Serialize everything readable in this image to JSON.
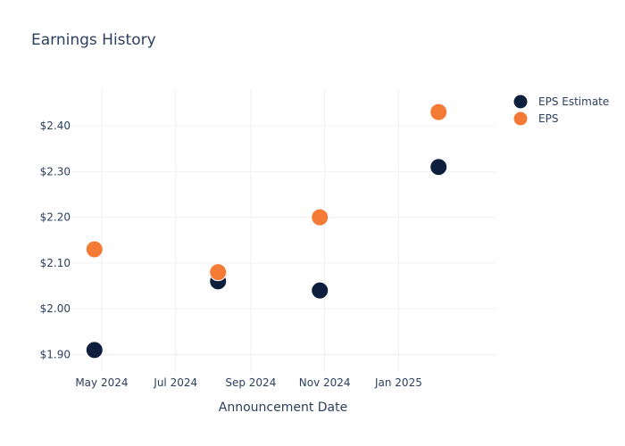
{
  "chart_data": {
    "type": "scatter",
    "title": "Earnings History",
    "xlabel": "Announcement Date",
    "ylabel": "",
    "x_ticks": [
      {
        "date": "2024-05-01",
        "label": "May 2024"
      },
      {
        "date": "2024-07-01",
        "label": "Jul 2024"
      },
      {
        "date": "2024-09-01",
        "label": "Sep 2024"
      },
      {
        "date": "2024-11-01",
        "label": "Nov 2024"
      },
      {
        "date": "2025-01-01",
        "label": "Jan 2025"
      }
    ],
    "xlim": [
      "2024-04-06",
      "2025-03-22"
    ],
    "y_ticks": [
      {
        "value": 1.9,
        "label": "$1.90"
      },
      {
        "value": 2.0,
        "label": "$2.00"
      },
      {
        "value": 2.1,
        "label": "$2.10"
      },
      {
        "value": 2.2,
        "label": "$2.20"
      },
      {
        "value": 2.3,
        "label": "$2.30"
      },
      {
        "value": 2.4,
        "label": "$2.40"
      }
    ],
    "ylim": [
      1.86,
      2.48
    ],
    "grid": true,
    "legend_position": "top-right",
    "series": [
      {
        "name": "EPS Estimate",
        "color": "#0d1f3c",
        "points": [
          {
            "x": "2024-04-25",
            "y": 1.91
          },
          {
            "x": "2024-08-05",
            "y": 2.06
          },
          {
            "x": "2024-10-28",
            "y": 2.04
          },
          {
            "x": "2025-02-03",
            "y": 2.31
          }
        ]
      },
      {
        "name": "EPS",
        "color": "#f47b35",
        "points": [
          {
            "x": "2024-04-25",
            "y": 2.13
          },
          {
            "x": "2024-08-05",
            "y": 2.08
          },
          {
            "x": "2024-10-28",
            "y": 2.2
          },
          {
            "x": "2025-02-03",
            "y": 2.43
          }
        ]
      }
    ]
  }
}
